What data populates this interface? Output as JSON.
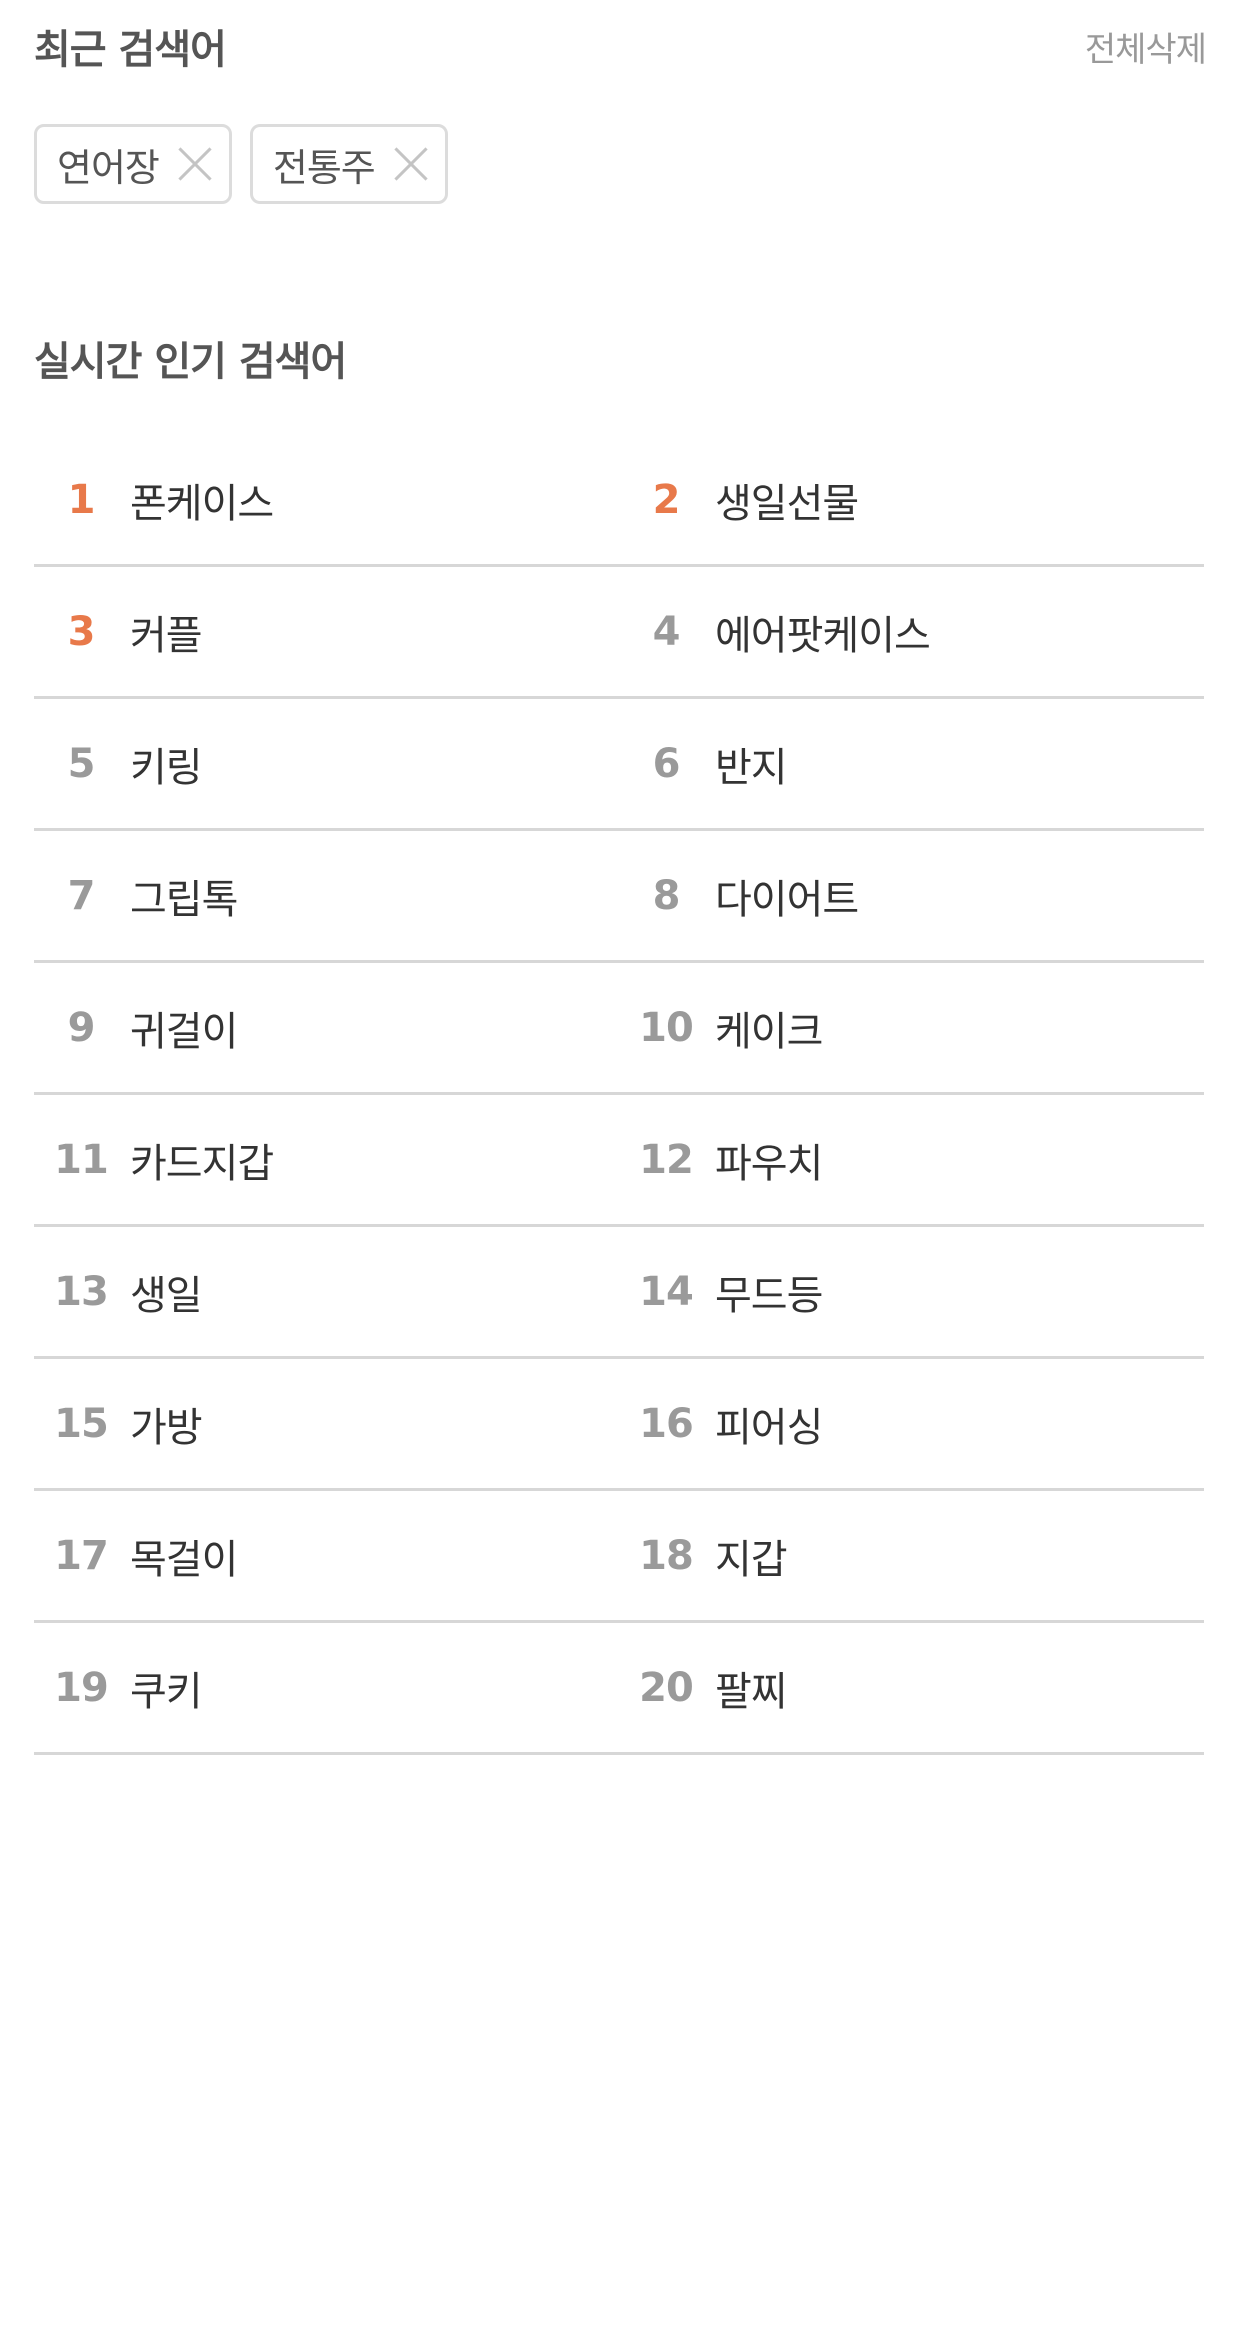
{
  "recent": {
    "title": "최근 검색어",
    "delete_all_label": "전체삭제",
    "chips": [
      {
        "label": "연어장"
      },
      {
        "label": "전통주"
      }
    ]
  },
  "popular": {
    "title": "실시간 인기 검색어",
    "highlight_color": "#e8794a",
    "normal_color": "#9a9a9a",
    "rows": [
      [
        {
          "rank": "1",
          "keyword": "폰케이스"
        },
        {
          "rank": "2",
          "keyword": "생일선물"
        }
      ],
      [
        {
          "rank": "3",
          "keyword": "커플"
        },
        {
          "rank": "4",
          "keyword": "에어팟케이스"
        }
      ],
      [
        {
          "rank": "5",
          "keyword": "키링"
        },
        {
          "rank": "6",
          "keyword": "반지"
        }
      ],
      [
        {
          "rank": "7",
          "keyword": "그립톡"
        },
        {
          "rank": "8",
          "keyword": "다이어트"
        }
      ],
      [
        {
          "rank": "9",
          "keyword": "귀걸이"
        },
        {
          "rank": "10",
          "keyword": "케이크"
        }
      ],
      [
        {
          "rank": "11",
          "keyword": "카드지갑"
        },
        {
          "rank": "12",
          "keyword": "파우치"
        }
      ],
      [
        {
          "rank": "13",
          "keyword": "생일"
        },
        {
          "rank": "14",
          "keyword": "무드등"
        }
      ],
      [
        {
          "rank": "15",
          "keyword": "가방"
        },
        {
          "rank": "16",
          "keyword": "피어싱"
        }
      ],
      [
        {
          "rank": "17",
          "keyword": "목걸이"
        },
        {
          "rank": "18",
          "keyword": "지갑"
        }
      ],
      [
        {
          "rank": "19",
          "keyword": "쿠키"
        },
        {
          "rank": "20",
          "keyword": "팔찌"
        }
      ]
    ]
  }
}
